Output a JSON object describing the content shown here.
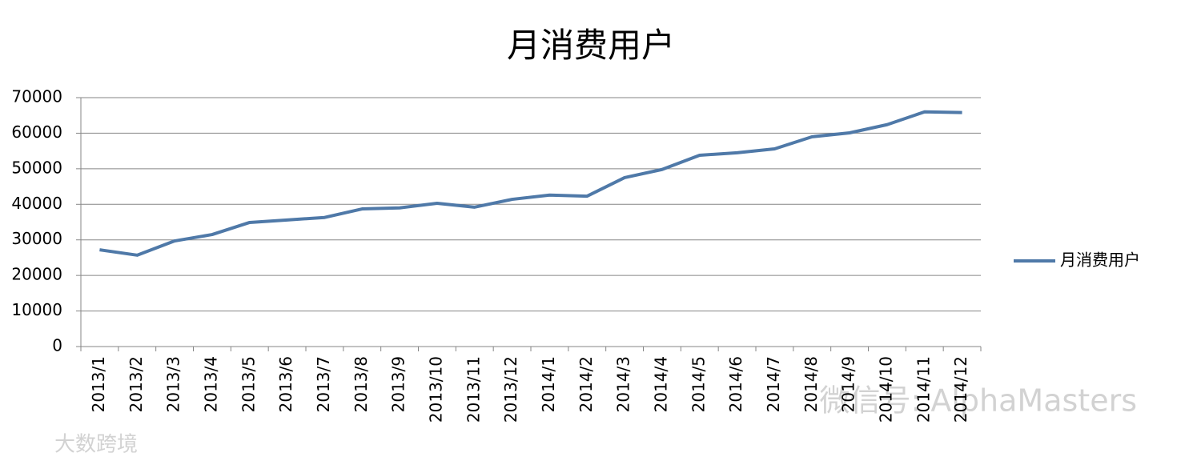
{
  "chart_data": {
    "type": "line",
    "title": "月消费用户",
    "categories": [
      "2013/1",
      "2013/2",
      "2013/3",
      "2013/4",
      "2013/5",
      "2013/6",
      "2013/7",
      "2013/8",
      "2013/9",
      "2013/10",
      "2013/11",
      "2013/12",
      "2014/1",
      "2014/2",
      "2014/3",
      "2014/4",
      "2014/5",
      "2014/6",
      "2014/7",
      "2014/8",
      "2014/9",
      "2014/10",
      "2014/11",
      "2014/12"
    ],
    "series": [
      {
        "name": "月消费用户",
        "color": "#4f79a8",
        "values": [
          27200,
          25700,
          29700,
          31500,
          34900,
          35600,
          36300,
          38700,
          39000,
          40300,
          39200,
          41400,
          42600,
          42300,
          47500,
          49800,
          53800,
          54500,
          55600,
          59000,
          60100,
          62400,
          66000,
          65800
        ]
      }
    ],
    "ylim": [
      0,
      70000
    ],
    "yticks": [
      0,
      10000,
      20000,
      30000,
      40000,
      50000,
      60000,
      70000
    ],
    "grid": true,
    "legend": "right",
    "watermarks": [
      "微信号: AlphaMasters",
      "大数跨境"
    ]
  }
}
